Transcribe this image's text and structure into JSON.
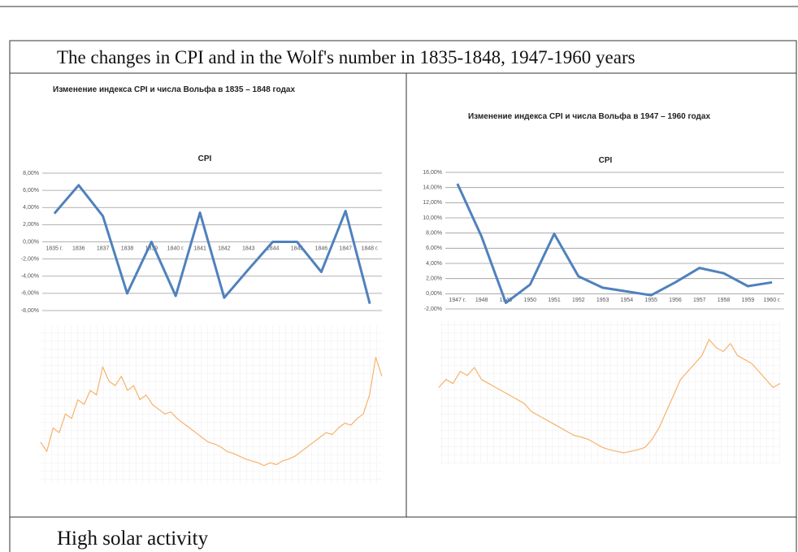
{
  "title": "The changes in CPI and in the Wolf's number in  1835-1848, 1947-1960 years",
  "footer": "High solar activity",
  "chart_data": [
    {
      "type": "line",
      "title": "Изменение индекса CPI и числа Вольфа в 1835 – 1848 годах",
      "subtitle": "CPI",
      "categories": [
        "1835 г.",
        "1836",
        "1837",
        "1838",
        "1839",
        "1840 г.",
        "1841",
        "1842",
        "1843",
        "1844",
        "1845",
        "1846",
        "1847",
        "1848 г."
      ],
      "values": [
        3.3,
        6.6,
        3.0,
        -6.0,
        0,
        -6.3,
        3.4,
        -6.5,
        -3.2,
        0,
        0,
        -3.5,
        3.6,
        -7.2
      ],
      "color": "#4f81bd",
      "grid": true,
      "ylim": [
        -8,
        8
      ],
      "yticks": [
        {
          "value": 8,
          "label": "8,00%"
        },
        {
          "value": 6,
          "label": "6,00%"
        },
        {
          "value": 4,
          "label": "4,00%"
        },
        {
          "value": 2,
          "label": "2,00%"
        },
        {
          "value": 0,
          "label": "0,00%"
        },
        {
          "value": -2,
          "label": "-2,00%"
        },
        {
          "value": -4,
          "label": "-4,00%"
        },
        {
          "value": -6,
          "label": "-6,00%"
        },
        {
          "value": -8,
          "label": "-8,00%"
        }
      ]
    },
    {
      "type": "line",
      "color": "#f7b26b",
      "ylim": [
        0,
        160
      ],
      "values": [
        40,
        30,
        55,
        50,
        70,
        65,
        85,
        80,
        95,
        90,
        120,
        105,
        100,
        110,
        95,
        100,
        85,
        90,
        80,
        75,
        70,
        72,
        65,
        60,
        55,
        50,
        45,
        40,
        38,
        35,
        30,
        28,
        25,
        22,
        20,
        18,
        15,
        18,
        16,
        20,
        22,
        25,
        30,
        35,
        40,
        45,
        50,
        48,
        55,
        60,
        58,
        65,
        70,
        90,
        130,
        110
      ]
    },
    {
      "type": "line",
      "title": "Изменение индекса CPI и числа Вольфа в 1947 – 1960  годах",
      "subtitle": "CPI",
      "categories": [
        "1947 г.",
        "1948",
        "1949",
        "1950",
        "1951",
        "1952",
        "1953",
        "1954",
        "1955",
        "1956",
        "1957",
        "1958",
        "1959",
        "1960 г."
      ],
      "values": [
        14.5,
        7.5,
        -1.2,
        1.2,
        7.9,
        2.3,
        0.8,
        0.3,
        -0.2,
        1.5,
        3.4,
        2.7,
        1.0,
        1.5
      ],
      "color": "#4f81bd",
      "grid": true,
      "ylim": [
        -2,
        16
      ],
      "yticks": [
        {
          "value": 16,
          "label": "16,00%"
        },
        {
          "value": 14,
          "label": "14,00%"
        },
        {
          "value": 12,
          "label": "12,00%"
        },
        {
          "value": 10,
          "label": "10,00%"
        },
        {
          "value": 8,
          "label": "8,00%"
        },
        {
          "value": 6,
          "label": "6,00%"
        },
        {
          "value": 4,
          "label": "4,00%"
        },
        {
          "value": 2,
          "label": "2,00%"
        },
        {
          "value": 0,
          "label": "0,00%"
        },
        {
          "value": -2,
          "label": "-2,00%"
        }
      ]
    },
    {
      "type": "line",
      "color": "#f7b26b",
      "ylim": [
        0,
        170
      ],
      "values": [
        90,
        100,
        95,
        110,
        105,
        115,
        100,
        95,
        90,
        85,
        80,
        75,
        70,
        60,
        55,
        50,
        45,
        40,
        35,
        30,
        28,
        25,
        20,
        15,
        12,
        10,
        8,
        10,
        12,
        15,
        25,
        40,
        60,
        80,
        100,
        110,
        120,
        130,
        150,
        140,
        135,
        145,
        130,
        125,
        120,
        110,
        100,
        90,
        95
      ]
    }
  ]
}
